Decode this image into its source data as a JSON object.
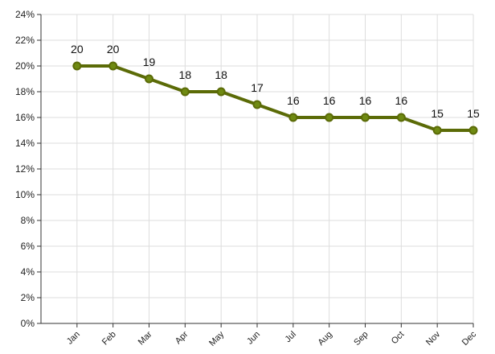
{
  "chart_data": {
    "type": "line",
    "categories": [
      "Jan",
      "Feb",
      "Mar",
      "Apr",
      "May",
      "Jun",
      "Jul",
      "Aug",
      "Sep",
      "Oct",
      "Nov",
      "Dec"
    ],
    "series": [
      {
        "values": [
          20,
          20,
          19,
          18,
          18,
          17,
          16,
          16,
          16,
          16,
          15,
          15
        ]
      }
    ],
    "ylim": [
      0,
      24
    ],
    "yticks": [
      "0%",
      "2%",
      "4%",
      "6%",
      "8%",
      "10%",
      "12%",
      "14%",
      "16%",
      "18%",
      "20%",
      "22%",
      "24%"
    ],
    "grid": true,
    "data_labels": true,
    "line_color": "#5b6b07",
    "marker_color": "#5b6b07",
    "marker_fill": "#6f8a12"
  }
}
